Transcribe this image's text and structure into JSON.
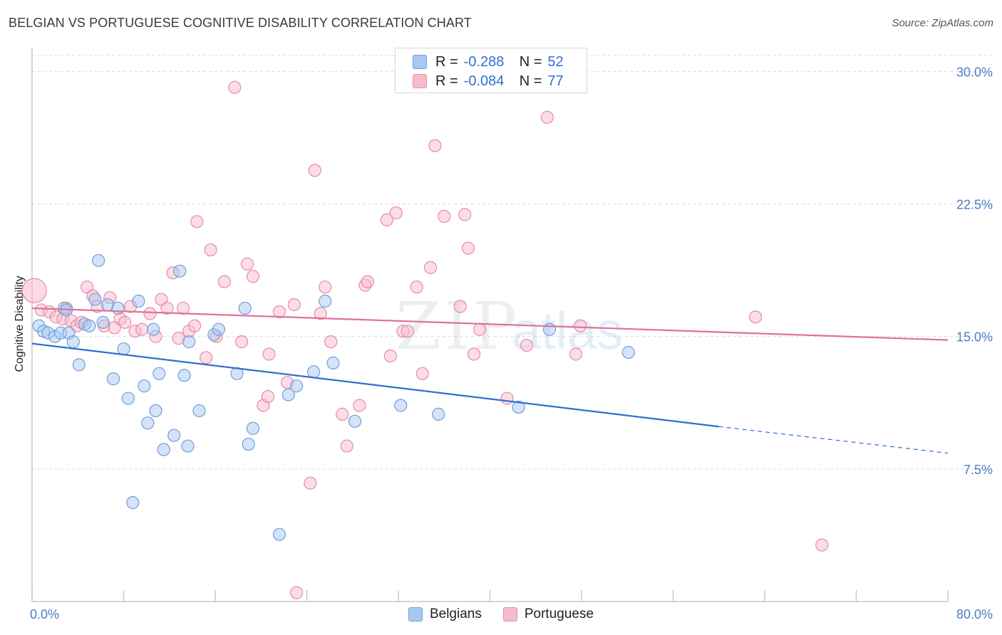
{
  "title": "BELGIAN VS PORTUGUESE COGNITIVE DISABILITY CORRELATION CHART",
  "source": "Source: ZipAtlas.com",
  "watermark": {
    "zip": "ZIP",
    "atlas": "atlas"
  },
  "legend": {
    "rows": [
      {
        "r_label": "R =",
        "r_value": "-0.288",
        "n_label": "N =",
        "n_value": "52"
      },
      {
        "r_label": "R =",
        "r_value": "-0.084",
        "n_label": "N =",
        "n_value": "77"
      }
    ]
  },
  "colors": {
    "belgians_fill": "#a9c8f0",
    "belgians_stroke": "#6f9fdb",
    "belgians_line": "#2f6fd0",
    "portuguese_fill": "#f7bccc",
    "portuguese_stroke": "#e88aa6",
    "portuguese_line": "#e07096",
    "axis_text": "#4a7cc9"
  },
  "chart_data": {
    "type": "scatter",
    "title": "BELGIAN VS PORTUGUESE COGNITIVE DISABILITY CORRELATION CHART",
    "xlabel": "",
    "ylabel": "Cognitive Disability",
    "xlim": [
      0,
      80
    ],
    "ylim": [
      0,
      30.9
    ],
    "x_tick_labels": [
      "0.0%",
      "80.0%"
    ],
    "y_ticks": [
      7.5,
      15.0,
      22.5,
      30.0
    ],
    "y_tick_labels": [
      "7.5%",
      "15.0%",
      "22.5%",
      "30.0%"
    ],
    "grid": true,
    "series": [
      {
        "name": "Belgians",
        "r": -0.288,
        "n": 52,
        "trend": {
          "x0": 0,
          "y0": 14.6,
          "x1": 60,
          "y1": 9.9,
          "dashed_to_x": 80,
          "dashed_to_y": 8.4
        },
        "points": [
          [
            0.6,
            15.6
          ],
          [
            1.0,
            15.3
          ],
          [
            1.4,
            15.2
          ],
          [
            2.0,
            15.0
          ],
          [
            2.5,
            15.2
          ],
          [
            2.8,
            16.6
          ],
          [
            3.2,
            15.2
          ],
          [
            3.6,
            14.7
          ],
          [
            4.1,
            13.4
          ],
          [
            4.6,
            15.7
          ],
          [
            5.0,
            15.6
          ],
          [
            5.5,
            17.1
          ],
          [
            5.8,
            19.3
          ],
          [
            6.2,
            15.8
          ],
          [
            6.6,
            16.8
          ],
          [
            7.1,
            12.6
          ],
          [
            7.5,
            16.6
          ],
          [
            8.0,
            14.3
          ],
          [
            8.4,
            11.5
          ],
          [
            8.8,
            5.6
          ],
          [
            9.3,
            17.0
          ],
          [
            9.8,
            12.2
          ],
          [
            10.1,
            10.1
          ],
          [
            10.6,
            15.4
          ],
          [
            11.1,
            12.9
          ],
          [
            11.5,
            8.6
          ],
          [
            12.4,
            9.4
          ],
          [
            12.9,
            18.7
          ],
          [
            13.3,
            12.8
          ],
          [
            13.6,
            8.8
          ],
          [
            13.7,
            14.7
          ],
          [
            14.6,
            10.8
          ],
          [
            15.9,
            15.1
          ],
          [
            16.3,
            15.4
          ],
          [
            17.9,
            12.9
          ],
          [
            18.6,
            16.6
          ],
          [
            18.9,
            8.9
          ],
          [
            19.3,
            9.8
          ],
          [
            21.6,
            3.8
          ],
          [
            22.4,
            11.7
          ],
          [
            23.1,
            12.2
          ],
          [
            24.6,
            13.0
          ],
          [
            25.6,
            17.0
          ],
          [
            26.3,
            13.5
          ],
          [
            28.2,
            10.2
          ],
          [
            32.2,
            11.1
          ],
          [
            35.5,
            10.6
          ],
          [
            42.5,
            11.0
          ],
          [
            45.2,
            15.4
          ],
          [
            52.1,
            14.1
          ],
          [
            10.8,
            10.8
          ],
          [
            3.0,
            16.5
          ]
        ]
      },
      {
        "name": "Portuguese",
        "r": -0.084,
        "n": 77,
        "trend": {
          "x0": 0,
          "y0": 16.6,
          "x1": 80,
          "y1": 14.8
        },
        "points": [
          [
            0.2,
            17.6
          ],
          [
            0.8,
            16.5
          ],
          [
            1.5,
            16.4
          ],
          [
            2.1,
            16.1
          ],
          [
            2.7,
            16.0
          ],
          [
            3.0,
            16.6
          ],
          [
            3.4,
            15.9
          ],
          [
            3.9,
            15.6
          ],
          [
            4.3,
            15.8
          ],
          [
            4.8,
            17.8
          ],
          [
            5.3,
            17.3
          ],
          [
            5.7,
            16.7
          ],
          [
            6.3,
            15.6
          ],
          [
            6.8,
            17.2
          ],
          [
            7.2,
            15.5
          ],
          [
            7.7,
            16.0
          ],
          [
            8.1,
            15.8
          ],
          [
            8.6,
            16.7
          ],
          [
            9.0,
            15.3
          ],
          [
            9.6,
            15.4
          ],
          [
            10.3,
            16.3
          ],
          [
            10.8,
            15.0
          ],
          [
            11.3,
            17.1
          ],
          [
            11.8,
            16.6
          ],
          [
            12.3,
            18.6
          ],
          [
            12.8,
            14.9
          ],
          [
            13.2,
            16.6
          ],
          [
            13.7,
            15.3
          ],
          [
            14.2,
            15.6
          ],
          [
            14.4,
            21.5
          ],
          [
            15.2,
            13.8
          ],
          [
            15.6,
            19.9
          ],
          [
            16.1,
            15.0
          ],
          [
            16.8,
            18.1
          ],
          [
            17.7,
            29.1
          ],
          [
            18.3,
            14.7
          ],
          [
            18.8,
            19.1
          ],
          [
            19.3,
            18.4
          ],
          [
            20.2,
            11.1
          ],
          [
            20.7,
            14.0
          ],
          [
            21.6,
            16.4
          ],
          [
            22.3,
            12.4
          ],
          [
            22.9,
            16.8
          ],
          [
            23.1,
            0.5
          ],
          [
            24.3,
            6.7
          ],
          [
            24.7,
            24.4
          ],
          [
            25.2,
            16.3
          ],
          [
            25.6,
            17.8
          ],
          [
            26.1,
            14.7
          ],
          [
            27.1,
            10.6
          ],
          [
            27.5,
            8.8
          ],
          [
            28.6,
            11.1
          ],
          [
            29.1,
            17.9
          ],
          [
            29.3,
            18.1
          ],
          [
            31.0,
            21.6
          ],
          [
            31.3,
            13.9
          ],
          [
            31.8,
            22.0
          ],
          [
            32.4,
            15.3
          ],
          [
            32.8,
            15.3
          ],
          [
            33.6,
            17.8
          ],
          [
            34.1,
            12.9
          ],
          [
            34.8,
            18.9
          ],
          [
            35.2,
            25.8
          ],
          [
            36.0,
            21.8
          ],
          [
            37.4,
            16.7
          ],
          [
            37.8,
            21.9
          ],
          [
            38.1,
            20.0
          ],
          [
            38.6,
            14.0
          ],
          [
            39.1,
            15.4
          ],
          [
            41.5,
            11.5
          ],
          [
            43.2,
            14.5
          ],
          [
            45.0,
            27.4
          ],
          [
            47.5,
            14.0
          ],
          [
            47.9,
            15.6
          ],
          [
            63.2,
            16.1
          ],
          [
            69.0,
            3.2
          ],
          [
            20.6,
            11.6
          ]
        ]
      }
    ]
  },
  "bottom_legend": [
    "Belgians",
    "Portuguese"
  ]
}
